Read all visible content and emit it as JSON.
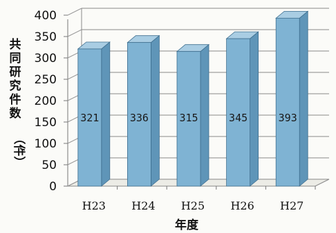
{
  "chart_data": {
    "type": "bar",
    "categories": [
      "H23",
      "H24",
      "H25",
      "H26",
      "H27"
    ],
    "values": [
      321,
      336,
      315,
      345,
      393
    ],
    "value_labels": [
      "321",
      "336",
      "315",
      "345",
      "393"
    ],
    "xlabel": "年度",
    "ylabel": [
      "共",
      "同",
      "研",
      "究",
      "件",
      "数",
      "（件）"
    ],
    "yticks": [
      "0",
      "50",
      "100",
      "150",
      "200",
      "250",
      "300",
      "350",
      "400"
    ],
    "ylim": [
      0,
      400
    ],
    "grid": true,
    "style": "3d-column",
    "bar_color": "#7fb3d3",
    "bar_top_color": "#a9cde3",
    "bar_side_color": "#5f95b8"
  }
}
